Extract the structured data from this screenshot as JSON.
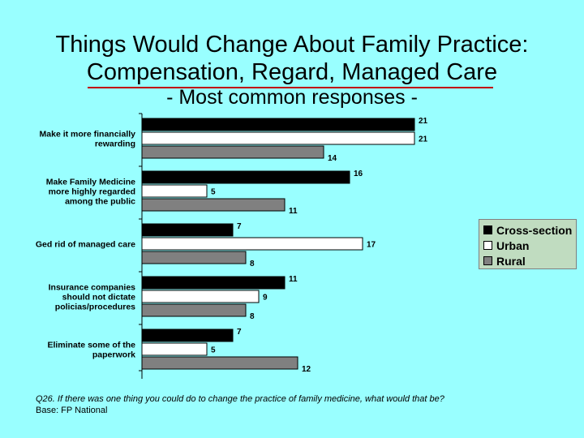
{
  "title_lines": [
    "Things Would Change About Family Practice:",
    "Compensation, Regard, Managed Care"
  ],
  "subtitle": "- Most common responses -",
  "footnote": {
    "question": "Q26. If there was one thing you could do to change the practice of family medicine, what would that be?",
    "base": "Base: FP National"
  },
  "legend": [
    {
      "name": "Cross-section",
      "color": "#000000"
    },
    {
      "name": "Urban",
      "color": "#ffffff"
    },
    {
      "name": "Rural",
      "color": "#808080"
    }
  ],
  "chart_data": {
    "type": "bar",
    "orientation": "horizontal",
    "categories": [
      [
        "Make it more financially",
        "rewarding"
      ],
      [
        "Make Family Medicine",
        "more highly regarded",
        "among the public"
      ],
      [
        "Ged rid of managed care"
      ],
      [
        "Insurance companies",
        "should not dictate",
        "policias/procedures"
      ],
      [
        "Eliminate some of the",
        "paperwork"
      ]
    ],
    "series": [
      {
        "name": "Cross-section",
        "color": "#000000",
        "values": [
          21,
          16,
          7,
          11,
          7
        ]
      },
      {
        "name": "Urban",
        "color": "#ffffff",
        "values": [
          21,
          5,
          17,
          9,
          5
        ]
      },
      {
        "name": "Rural",
        "color": "#808080",
        "values": [
          14,
          11,
          8,
          8,
          12
        ]
      }
    ],
    "xlim": [
      0,
      25
    ],
    "grid": false,
    "legend_position": "right"
  }
}
